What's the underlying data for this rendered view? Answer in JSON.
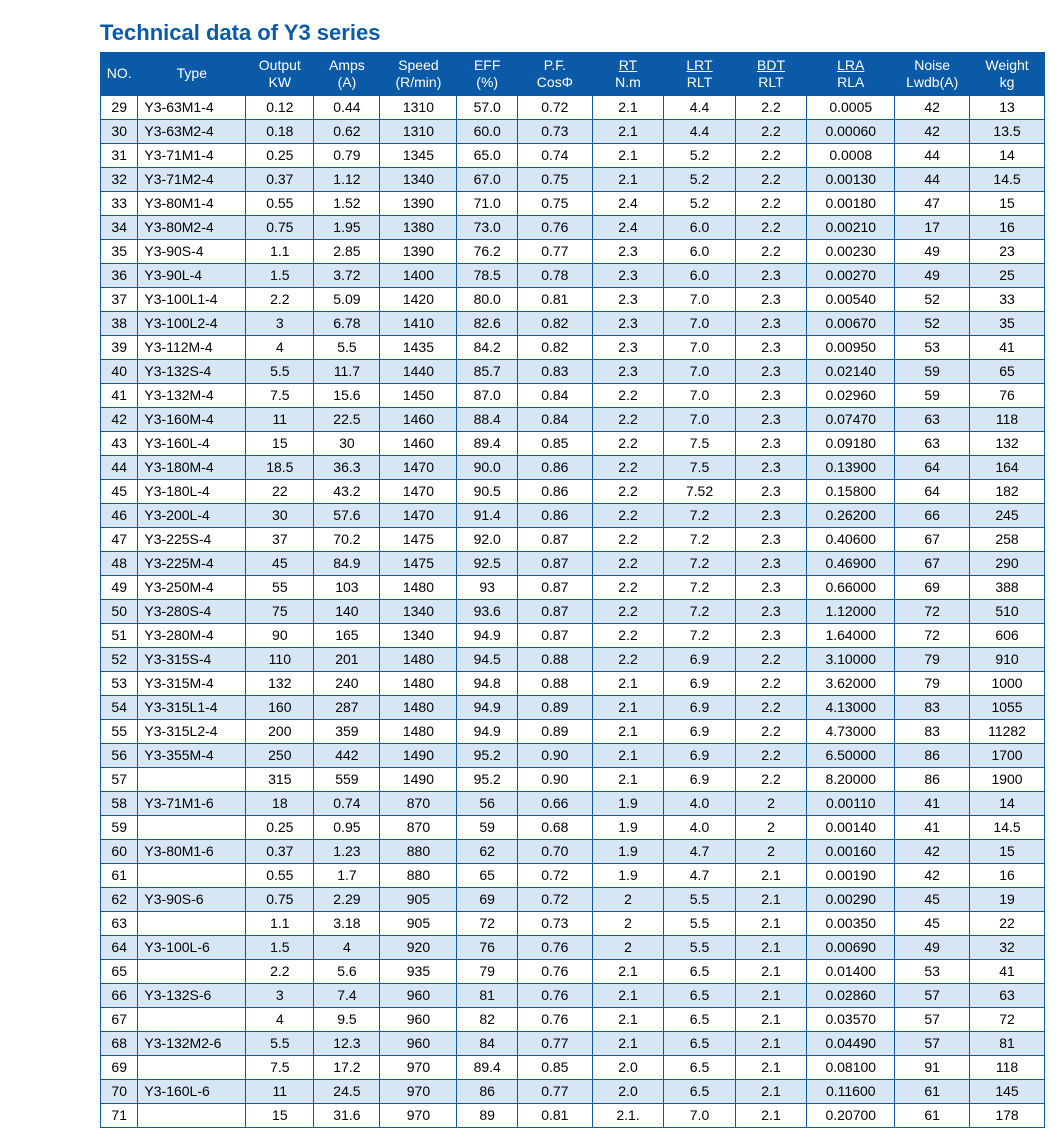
{
  "title": "Technical data of Y3 series",
  "headers": {
    "no": "NO.",
    "type": "Type",
    "output_top": "Output",
    "output_bot": "KW",
    "amps_top": "Amps",
    "amps_bot": "(A)",
    "speed_top": "Speed",
    "speed_bot": "(R/min)",
    "eff_top": "EFF",
    "eff_bot": "(%)",
    "pf_top": "P.F.",
    "pf_bot": "CosΦ",
    "rt_top": "RT",
    "rt_bot": "N.m",
    "lrt_top": "LRT",
    "lrt_bot": "RLT",
    "bdt_top": "BDT",
    "bdt_bot": "RLT",
    "lra_top": "LRA",
    "lra_bot": "RLA",
    "noise_top": "Noise",
    "noise_bot": "Lwdb(A)",
    "weight_top": "Weight",
    "weight_bot": "kg"
  },
  "rows": [
    {
      "no": "29",
      "type": "Y3-63M1-4",
      "out": "0.12",
      "amp": "0.44",
      "spd": "1310",
      "eff": "57.0",
      "pf": "0.72",
      "rt": "2.1",
      "lrt": "4.4",
      "bdt": "2.2",
      "lra": "0.0005",
      "noi": "42",
      "wt": "13"
    },
    {
      "no": "30",
      "type": "Y3-63M2-4",
      "out": "0.18",
      "amp": "0.62",
      "spd": "1310",
      "eff": "60.0",
      "pf": "0.73",
      "rt": "2.1",
      "lrt": "4.4",
      "bdt": "2.2",
      "lra": "0.00060",
      "noi": "42",
      "wt": "13.5"
    },
    {
      "no": "31",
      "type": "Y3-71M1-4",
      "out": "0.25",
      "amp": "0.79",
      "spd": "1345",
      "eff": "65.0",
      "pf": "0.74",
      "rt": "2.1",
      "lrt": "5.2",
      "bdt": "2.2",
      "lra": "0.0008",
      "noi": "44",
      "wt": "14"
    },
    {
      "no": "32",
      "type": "Y3-71M2-4",
      "out": "0.37",
      "amp": "1.12",
      "spd": "1340",
      "eff": "67.0",
      "pf": "0.75",
      "rt": "2.1",
      "lrt": "5.2",
      "bdt": "2.2",
      "lra": "0.00130",
      "noi": "44",
      "wt": "14.5"
    },
    {
      "no": "33",
      "type": "Y3-80M1-4",
      "out": "0.55",
      "amp": "1.52",
      "spd": "1390",
      "eff": "71.0",
      "pf": "0.75",
      "rt": "2.4",
      "lrt": "5.2",
      "bdt": "2.2",
      "lra": "0.00180",
      "noi": "47",
      "wt": "15"
    },
    {
      "no": "34",
      "type": "Y3-80M2-4",
      "out": "0.75",
      "amp": "1.95",
      "spd": "1380",
      "eff": "73.0",
      "pf": "0.76",
      "rt": "2.4",
      "lrt": "6.0",
      "bdt": "2.2",
      "lra": "0.00210",
      "noi": "17",
      "wt": "16"
    },
    {
      "no": "35",
      "type": "Y3-90S-4",
      "out": "1.1",
      "amp": "2.85",
      "spd": "1390",
      "eff": "76.2",
      "pf": "0.77",
      "rt": "2.3",
      "lrt": "6.0",
      "bdt": "2.2",
      "lra": "0.00230",
      "noi": "49",
      "wt": "23"
    },
    {
      "no": "36",
      "type": "Y3-90L-4",
      "out": "1.5",
      "amp": "3.72",
      "spd": "1400",
      "eff": "78.5",
      "pf": "0.78",
      "rt": "2.3",
      "lrt": "6.0",
      "bdt": "2.3",
      "lra": "0.00270",
      "noi": "49",
      "wt": "25"
    },
    {
      "no": "37",
      "type": "Y3-100L1-4",
      "out": "2.2",
      "amp": "5.09",
      "spd": "1420",
      "eff": "80.0",
      "pf": "0.81",
      "rt": "2.3",
      "lrt": "7.0",
      "bdt": "2.3",
      "lra": "0.00540",
      "noi": "52",
      "wt": "33"
    },
    {
      "no": "38",
      "type": "Y3-100L2-4",
      "out": "3",
      "amp": "6.78",
      "spd": "1410",
      "eff": "82.6",
      "pf": "0.82",
      "rt": "2.3",
      "lrt": "7.0",
      "bdt": "2.3",
      "lra": "0.00670",
      "noi": "52",
      "wt": "35"
    },
    {
      "no": "39",
      "type": "Y3-112M-4",
      "out": "4",
      "amp": "5.5",
      "spd": "1435",
      "eff": "84.2",
      "pf": "0.82",
      "rt": "2.3",
      "lrt": "7.0",
      "bdt": "2.3",
      "lra": "0.00950",
      "noi": "53",
      "wt": "41"
    },
    {
      "no": "40",
      "type": "Y3-132S-4",
      "out": "5.5",
      "amp": "11.7",
      "spd": "1440",
      "eff": "85.7",
      "pf": "0.83",
      "rt": "2.3",
      "lrt": "7.0",
      "bdt": "2.3",
      "lra": "0.02140",
      "noi": "59",
      "wt": "65"
    },
    {
      "no": "41",
      "type": "Y3-132M-4",
      "out": "7.5",
      "amp": "15.6",
      "spd": "1450",
      "eff": "87.0",
      "pf": "0.84",
      "rt": "2.2",
      "lrt": "7.0",
      "bdt": "2.3",
      "lra": "0.02960",
      "noi": "59",
      "wt": "76"
    },
    {
      "no": "42",
      "type": "Y3-160M-4",
      "out": "11",
      "amp": "22.5",
      "spd": "1460",
      "eff": "88.4",
      "pf": "0.84",
      "rt": "2.2",
      "lrt": "7.0",
      "bdt": "2.3",
      "lra": "0.07470",
      "noi": "63",
      "wt": "118"
    },
    {
      "no": "43",
      "type": "Y3-160L-4",
      "out": "15",
      "amp": "30",
      "spd": "1460",
      "eff": "89.4",
      "pf": "0.85",
      "rt": "2.2",
      "lrt": "7.5",
      "bdt": "2.3",
      "lra": "0.09180",
      "noi": "63",
      "wt": "132"
    },
    {
      "no": "44",
      "type": "Y3-180M-4",
      "out": "18.5",
      "amp": "36.3",
      "spd": "1470",
      "eff": "90.0",
      "pf": "0.86",
      "rt": "2.2",
      "lrt": "7.5",
      "bdt": "2.3",
      "lra": "0.13900",
      "noi": "64",
      "wt": "164"
    },
    {
      "no": "45",
      "type": "Y3-180L-4",
      "out": "22",
      "amp": "43.2",
      "spd": "1470",
      "eff": "90.5",
      "pf": "0.86",
      "rt": "2.2",
      "lrt": "7.52",
      "bdt": "2.3",
      "lra": "0.15800",
      "noi": "64",
      "wt": "182"
    },
    {
      "no": "46",
      "type": "Y3-200L-4",
      "out": "30",
      "amp": "57.6",
      "spd": "1470",
      "eff": "91.4",
      "pf": "0.86",
      "rt": "2.2",
      "lrt": "7.2",
      "bdt": "2.3",
      "lra": "0.26200",
      "noi": "66",
      "wt": "245"
    },
    {
      "no": "47",
      "type": "Y3-225S-4",
      "out": "37",
      "amp": "70.2",
      "spd": "1475",
      "eff": "92.0",
      "pf": "0.87",
      "rt": "2.2",
      "lrt": "7.2",
      "bdt": "2.3",
      "lra": "0.40600",
      "noi": "67",
      "wt": "258"
    },
    {
      "no": "48",
      "type": "Y3-225M-4",
      "out": "45",
      "amp": "84.9",
      "spd": "1475",
      "eff": "92.5",
      "pf": "0.87",
      "rt": "2.2",
      "lrt": "7.2",
      "bdt": "2.3",
      "lra": "0.46900",
      "noi": "67",
      "wt": "290"
    },
    {
      "no": "49",
      "type": "Y3-250M-4",
      "out": "55",
      "amp": "103",
      "spd": "1480",
      "eff": "93",
      "pf": "0.87",
      "rt": "2.2",
      "lrt": "7.2",
      "bdt": "2.3",
      "lra": "0.66000",
      "noi": "69",
      "wt": "388"
    },
    {
      "no": "50",
      "type": "Y3-280S-4",
      "out": "75",
      "amp": "140",
      "spd": "1340",
      "eff": "93.6",
      "pf": "0.87",
      "rt": "2.2",
      "lrt": "7.2",
      "bdt": "2.3",
      "lra": "1.12000",
      "noi": "72",
      "wt": "510"
    },
    {
      "no": "51",
      "type": "Y3-280M-4",
      "out": "90",
      "amp": "165",
      "spd": "1340",
      "eff": "94.9",
      "pf": "0.87",
      "rt": "2.2",
      "lrt": "7.2",
      "bdt": "2.3",
      "lra": "1.64000",
      "noi": "72",
      "wt": "606"
    },
    {
      "no": "52",
      "type": "Y3-315S-4",
      "out": "110",
      "amp": "201",
      "spd": "1480",
      "eff": "94.5",
      "pf": "0.88",
      "rt": "2.2",
      "lrt": "6.9",
      "bdt": "2.2",
      "lra": "3.10000",
      "noi": "79",
      "wt": "910"
    },
    {
      "no": "53",
      "type": "Y3-315M-4",
      "out": "132",
      "amp": "240",
      "spd": "1480",
      "eff": "94.8",
      "pf": "0.88",
      "rt": "2.1",
      "lrt": "6.9",
      "bdt": "2.2",
      "lra": "3.62000",
      "noi": "79",
      "wt": "1000"
    },
    {
      "no": "54",
      "type": "Y3-315L1-4",
      "out": "160",
      "amp": "287",
      "spd": "1480",
      "eff": "94.9",
      "pf": "0.89",
      "rt": "2.1",
      "lrt": "6.9",
      "bdt": "2.2",
      "lra": "4.13000",
      "noi": "83",
      "wt": "1055"
    },
    {
      "no": "55",
      "type": "Y3-315L2-4",
      "out": "200",
      "amp": "359",
      "spd": "1480",
      "eff": "94.9",
      "pf": "0.89",
      "rt": "2.1",
      "lrt": "6.9",
      "bdt": "2.2",
      "lra": "4.73000",
      "noi": "83",
      "wt": "11282"
    },
    {
      "no": "56",
      "type": "Y3-355M-4",
      "out": "250",
      "amp": "442",
      "spd": "1490",
      "eff": "95.2",
      "pf": "0.90",
      "rt": "2.1",
      "lrt": "6.9",
      "bdt": "2.2",
      "lra": "6.50000",
      "noi": "86",
      "wt": "1700"
    },
    {
      "no": "57",
      "type": "",
      "out": "315",
      "amp": "559",
      "spd": "1490",
      "eff": "95.2",
      "pf": "0.90",
      "rt": "2.1",
      "lrt": "6.9",
      "bdt": "2.2",
      "lra": "8.20000",
      "noi": "86",
      "wt": "1900"
    },
    {
      "no": "58",
      "type": "Y3-71M1-6",
      "out": "18",
      "amp": "0.74",
      "spd": "870",
      "eff": "56",
      "pf": "0.66",
      "rt": "1.9",
      "lrt": "4.0",
      "bdt": "2",
      "lra": "0.00110",
      "noi": "41",
      "wt": "14"
    },
    {
      "no": "59",
      "type": "",
      "out": "0.25",
      "amp": "0.95",
      "spd": "870",
      "eff": "59",
      "pf": "0.68",
      "rt": "1.9",
      "lrt": "4.0",
      "bdt": "2",
      "lra": "0.00140",
      "noi": "41",
      "wt": "14.5"
    },
    {
      "no": "60",
      "type": "Y3-80M1-6",
      "out": "0.37",
      "amp": "1.23",
      "spd": "880",
      "eff": "62",
      "pf": "0.70",
      "rt": "1.9",
      "lrt": "4.7",
      "bdt": "2",
      "lra": "0.00160",
      "noi": "42",
      "wt": "15"
    },
    {
      "no": "61",
      "type": "",
      "out": "0.55",
      "amp": "1.7",
      "spd": "880",
      "eff": "65",
      "pf": "0.72",
      "rt": "1.9",
      "lrt": "4.7",
      "bdt": "2.1",
      "lra": "0.00190",
      "noi": "42",
      "wt": "16"
    },
    {
      "no": "62",
      "type": "Y3-90S-6",
      "out": "0.75",
      "amp": "2.29",
      "spd": "905",
      "eff": "69",
      "pf": "0.72",
      "rt": "2",
      "lrt": "5.5",
      "bdt": "2.1",
      "lra": "0.00290",
      "noi": "45",
      "wt": "19"
    },
    {
      "no": "63",
      "type": "",
      "out": "1.1",
      "amp": "3.18",
      "spd": "905",
      "eff": "72",
      "pf": "0.73",
      "rt": "2",
      "lrt": "5.5",
      "bdt": "2.1",
      "lra": "0.00350",
      "noi": "45",
      "wt": "22"
    },
    {
      "no": "64",
      "type": "Y3-100L-6",
      "out": "1.5",
      "amp": "4",
      "spd": "920",
      "eff": "76",
      "pf": "0.76",
      "rt": "2",
      "lrt": "5.5",
      "bdt": "2.1",
      "lra": "0.00690",
      "noi": "49",
      "wt": "32"
    },
    {
      "no": "65",
      "type": "",
      "out": "2.2",
      "amp": "5.6",
      "spd": "935",
      "eff": "79",
      "pf": "0.76",
      "rt": "2.1",
      "lrt": "6.5",
      "bdt": "2.1",
      "lra": "0.01400",
      "noi": "53",
      "wt": "41"
    },
    {
      "no": "66",
      "type": "Y3-132S-6",
      "out": "3",
      "amp": "7.4",
      "spd": "960",
      "eff": "81",
      "pf": "0.76",
      "rt": "2.1",
      "lrt": "6.5",
      "bdt": "2.1",
      "lra": "0.02860",
      "noi": "57",
      "wt": "63"
    },
    {
      "no": "67",
      "type": "",
      "out": "4",
      "amp": "9.5",
      "spd": "960",
      "eff": "82",
      "pf": "0.76",
      "rt": "2.1",
      "lrt": "6.5",
      "bdt": "2.1",
      "lra": "0.03570",
      "noi": "57",
      "wt": "72"
    },
    {
      "no": "68",
      "type": "Y3-132M2-6",
      "out": "5.5",
      "amp": "12.3",
      "spd": "960",
      "eff": "84",
      "pf": "0.77",
      "rt": "2.1",
      "lrt": "6.5",
      "bdt": "2.1",
      "lra": "0.04490",
      "noi": "57",
      "wt": "81"
    },
    {
      "no": "69",
      "type": "",
      "out": "7.5",
      "amp": "17.2",
      "spd": "970",
      "eff": "89.4",
      "pf": "0.85",
      "rt": "2.0",
      "lrt": "6.5",
      "bdt": "2.1",
      "lra": "0.08100",
      "noi": "91",
      "wt": "118"
    },
    {
      "no": "70",
      "type": "Y3-160L-6",
      "out": "11",
      "amp": "24.5",
      "spd": "970",
      "eff": "86",
      "pf": "0.77",
      "rt": "2.0",
      "lrt": "6.5",
      "bdt": "2.1",
      "lra": "0.11600",
      "noi": "61",
      "wt": "145"
    },
    {
      "no": "71",
      "type": "",
      "out": "15",
      "amp": "31.6",
      "spd": "970",
      "eff": "89",
      "pf": "0.81",
      "rt": "2.1.",
      "lrt": "7.0",
      "bdt": "2.1",
      "lra": "0.20700",
      "noi": "61",
      "wt": "178"
    }
  ]
}
